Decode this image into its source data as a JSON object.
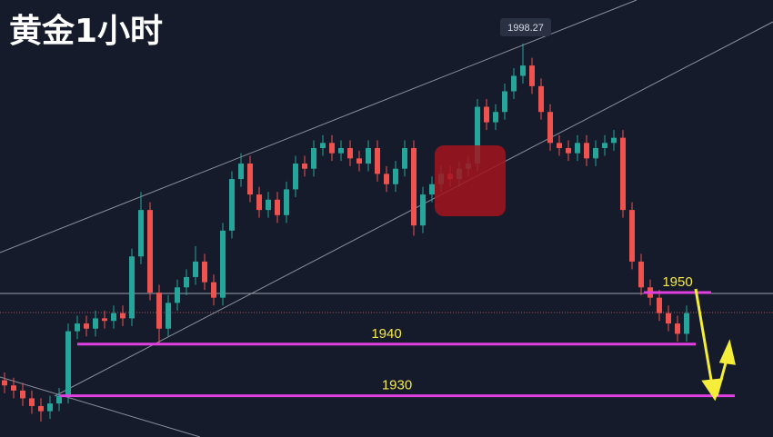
{
  "chart_data": {
    "type": "candlestick",
    "title": "黄金1小时",
    "up_color": "#26a69a",
    "down_color": "#ef5350",
    "level_color": "#e040e0",
    "ylim": [
      1922,
      2006.7
    ],
    "levels": [
      1950,
      1940,
      1930
    ],
    "peak_index": 57,
    "open": [
      1933,
      1932,
      1931,
      1929.5,
      1928,
      1927,
      1928.5,
      1930,
      1942.5,
      1944,
      1943,
      1945,
      1944.5,
      1946,
      1945,
      1957,
      1966,
      1950,
      1943,
      1948,
      1951,
      1953,
      1956,
      1952,
      1949,
      1962,
      1972,
      1975,
      1969,
      1966,
      1968,
      1965,
      1970,
      1975,
      1974,
      1978,
      1979,
      1977,
      1978,
      1976,
      1975,
      1978,
      1973,
      1971,
      1974,
      1978,
      1963,
      1969,
      1971,
      1973,
      1972,
      1974,
      1975,
      1986,
      1983,
      1985,
      1989,
      1992,
      1994,
      1990,
      1985,
      1979,
      1978,
      1977,
      1979,
      1976,
      1978,
      1979,
      1980,
      1966,
      1956,
      1951,
      1949,
      1946,
      1944,
      1942
    ],
    "high": [
      1934.5,
      1933.5,
      1932.5,
      1931,
      1929.5,
      1930,
      1931.5,
      1944,
      1945.5,
      1945.5,
      1946.5,
      1946.5,
      1947.5,
      1947.5,
      1958.5,
      1969.5,
      1967.5,
      1951.5,
      1949.5,
      1952.5,
      1954.5,
      1959,
      1957.5,
      1953.5,
      1963.5,
      1973.5,
      1977,
      1976.5,
      1970.5,
      1969.5,
      1969.5,
      1971.5,
      1976.5,
      1976.5,
      1979.5,
      1980.5,
      1980.5,
      1979.5,
      1979.5,
      1977.5,
      1979.5,
      1979.5,
      1974.5,
      1975.5,
      1979.5,
      1979.5,
      1970.5,
      1972.5,
      1974.5,
      1974.5,
      1975.5,
      1976.5,
      1987.5,
      1987.5,
      1986.5,
      1990.5,
      1993.5,
      1998.27,
      1995.5,
      1991.5,
      1986.5,
      1980.5,
      1979.5,
      1980.5,
      1980.5,
      1979.5,
      1980.5,
      1981.5,
      1981.5,
      1967.5,
      1957.5,
      1952.5,
      1950.5,
      1947.5,
      1945.5,
      1947.5
    ],
    "low": [
      1930.5,
      1929.5,
      1928,
      1926.5,
      1925,
      1925.5,
      1927,
      1928.5,
      1941,
      1941.5,
      1941.5,
      1943,
      1943,
      1943.5,
      1943.5,
      1955.5,
      1948.5,
      1940,
      1941.5,
      1946.5,
      1949.5,
      1951.5,
      1950.5,
      1947.5,
      1947.5,
      1960.5,
      1970.5,
      1967.5,
      1964.5,
      1964.5,
      1963.5,
      1963.5,
      1968.5,
      1972.5,
      1972.5,
      1976.5,
      1975.5,
      1975.5,
      1974.5,
      1973.5,
      1973.5,
      1971.5,
      1969.5,
      1969.5,
      1972.5,
      1961,
      1961.5,
      1967.5,
      1969.5,
      1970.5,
      1970.5,
      1972.5,
      1973.5,
      1981.5,
      1981.5,
      1983.5,
      1987.5,
      1990.5,
      1988.5,
      1983.5,
      1977.5,
      1976.5,
      1975.5,
      1975.5,
      1974.5,
      1974.5,
      1976.5,
      1977.5,
      1964.5,
      1954.5,
      1949.5,
      1947.5,
      1944.5,
      1942.5,
      1940.5,
      1940.5
    ],
    "close": [
      1932,
      1931,
      1929.5,
      1928,
      1927,
      1928.5,
      1930,
      1942.5,
      1944,
      1943,
      1945,
      1944.5,
      1946,
      1945,
      1957,
      1966,
      1950,
      1943,
      1948,
      1951,
      1953,
      1956,
      1952,
      1949,
      1962,
      1972,
      1975,
      1969,
      1966,
      1968,
      1965,
      1970,
      1975,
      1974,
      1978,
      1979,
      1977,
      1978,
      1976,
      1975,
      1978,
      1973,
      1971,
      1974,
      1978,
      1963,
      1969,
      1971,
      1973,
      1972,
      1974,
      1975,
      1986,
      1983,
      1985,
      1989,
      1992,
      1994,
      1990,
      1985,
      1979,
      1978,
      1977,
      1979,
      1976,
      1978,
      1979,
      1980,
      1966,
      1956,
      1951,
      1949,
      1946,
      1944,
      1942,
      1946
    ]
  }
}
